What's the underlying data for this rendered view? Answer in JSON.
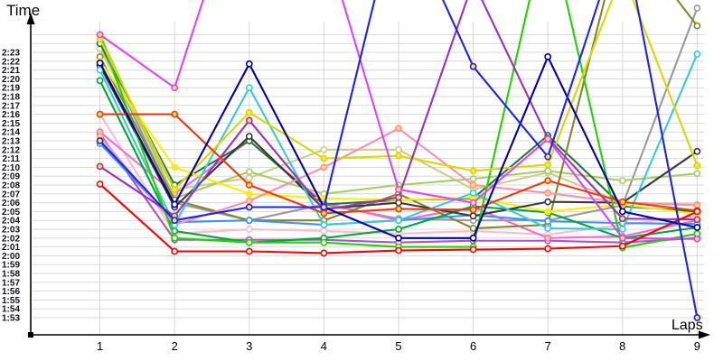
{
  "chart_data": {
    "type": "line",
    "title": "",
    "ylabel": "Time",
    "xlabel": "Laps",
    "grid": true,
    "legend": "none",
    "x_ticks": [
      "1",
      "2",
      "3",
      "4",
      "5",
      "6",
      "7",
      "8",
      "9"
    ],
    "y_ticks": [
      "2:23",
      "2:22",
      "2:21",
      "2:20",
      "2:19",
      "2:18",
      "2:17",
      "2:16",
      "2:15",
      "2:14",
      "2:13",
      "2:12",
      "2:11",
      "2:10",
      "2:09",
      "2:08",
      "2:07",
      "2:06",
      "2:05",
      "2:04",
      "2:03",
      "2:02",
      "2:01",
      "2:00",
      "1:59",
      "1:58",
      "1:57",
      "1:56",
      "1:55",
      "1:54",
      "1:53"
    ],
    "y_axis": {
      "top_label": "2:23",
      "bottom_label": "1:53",
      "tick_interval_seconds": 1
    },
    "x_axis": {
      "first_lap": 1,
      "last_lap": 9
    },
    "series": [
      {
        "id": "series-gray",
        "color": "#9a9a9a",
        "marker_fill": "#ffffff",
        "lap_times_seconds": [
          144.0,
          126.0,
          124.0,
          125.8,
          124.2,
          124.0,
          124.0,
          125.7,
          148.0
        ]
      },
      {
        "id": "series-light-pink",
        "color": "#ffbccb",
        "marker_fill": "#ffffff",
        "lap_times_seconds": [
          136.0,
          122.5,
          123.0,
          122.8,
          122.5,
          122.8,
          122.4,
          123.5,
          124.5
        ]
      },
      {
        "id": "series-plum",
        "color": "#aa55cc",
        "marker_fill": "#ffffff",
        "lap_times_seconds": [
          133.8,
          121.8,
          121.8,
          121.8,
          121.5,
          121.7,
          121.7,
          121.5,
          122.0
        ]
      },
      {
        "id": "series-magenta",
        "color": "#ff66dd",
        "marker_fill": "#ffe24a",
        "lap_times_seconds": [
          134.0,
          127.0,
          133.0,
          126.0,
          124.0,
          125.5,
          122.0,
          122.2,
          124.0
        ]
      },
      {
        "id": "series-khaki",
        "color": "#cdcd8a",
        "marker_fill": "#ffffff",
        "lap_times_seconds": [
          143.4,
          127.5,
          128.8,
          132.0,
          132.0,
          127.5,
          129.4,
          126.0,
          125.8
        ]
      },
      {
        "id": "series-pale-green",
        "color": "#a9cc66",
        "marker_fill": "#ffffff",
        "lap_times_seconds": [
          145.0,
          126.5,
          129.5,
          127.0,
          128.0,
          128.7,
          129.6,
          128.5,
          129.3
        ]
      },
      {
        "id": "series-dark-green",
        "color": "#1f7a33",
        "marker_fill": "#ffffff",
        "lap_times_seconds": [
          144.0,
          128.0,
          133.0,
          125.8,
          126.3,
          126.5,
          133.6,
          125.6,
          125.0
        ]
      },
      {
        "id": "series-olive",
        "color": "#86862f",
        "marker_fill": "#ffffff",
        "lap_times_seconds": [
          142.5,
          126.3,
          124.0,
          124.0,
          127.0,
          123.1,
          123.5,
          157.0,
          146.0
        ]
      },
      {
        "id": "series-sky-blue",
        "color": "#3b94f0",
        "marker_fill": "#ffffff",
        "lap_times_seconds": [
          132.7,
          123.8,
          124.0,
          123.5,
          124.0,
          124.6,
          123.9,
          123.7,
          123.6
        ]
      },
      {
        "id": "series-green",
        "color": "#00a838",
        "marker_fill": "#ffffff",
        "lap_times_seconds": [
          139.8,
          122.8,
          121.5,
          122.0,
          123.0,
          125.6,
          124.9,
          122.0,
          123.2
        ]
      },
      {
        "id": "series-bright-yellow",
        "color": "#ffee00",
        "marker_fill": "#ffe24a",
        "lap_times_seconds": [
          142.0,
          130.0,
          127.0,
          126.5,
          126.3,
          126.6,
          125.0,
          125.8,
          124.7
        ]
      },
      {
        "id": "series-black",
        "color": "#3a3a3a",
        "marker_fill": "#ffffff",
        "lap_times_seconds": [
          141.5,
          125.5,
          133.5,
          125.3,
          126.0,
          124.5,
          126.1,
          126.0,
          131.8
        ]
      },
      {
        "id": "series-pink",
        "color": "#ff8fae",
        "marker_fill": "#ffe24a",
        "lap_times_seconds": [
          133.5,
          123.5,
          126.2,
          130.0,
          134.4,
          128.0,
          127.1,
          126.0,
          125.7
        ]
      },
      {
        "id": "series-cyan",
        "color": "#35cdd3",
        "marker_fill": "#ffffff",
        "lap_times_seconds": [
          141.0,
          123.5,
          139.0,
          123.5,
          124.0,
          127.1,
          123.1,
          123.0,
          142.8
        ]
      },
      {
        "id": "series-bright-green",
        "color": "#1fd400",
        "marker_fill": "#ffffff",
        "lap_times_seconds": [
          145.0,
          122.0,
          121.5,
          121.5,
          121.0,
          121.0,
          158.0,
          120.9,
          122.5
        ]
      },
      {
        "id": "series-yellow",
        "color": "#d9d900",
        "marker_fill": "#ffe24a",
        "lap_times_seconds": [
          144.5,
          127.5,
          136.2,
          131.0,
          131.3,
          129.6,
          130.3,
          152.0,
          130.2
        ]
      },
      {
        "id": "series-purple",
        "color": "#9933bb",
        "marker_fill": "#ffe24a",
        "lap_times_seconds": [
          130.1,
          124.5,
          135.3,
          125.2,
          126.6,
          151.0,
          133.3,
          124.2,
          124.1
        ]
      },
      {
        "id": "series-violet",
        "color": "#dd44ff",
        "marker_fill": "#ffe24a",
        "lap_times_seconds": [
          145.0,
          139.0,
          165.0,
          156.0,
          127.5,
          126.0,
          133.2,
          122.0,
          121.9
        ]
      },
      {
        "id": "series-orange-red",
        "color": "#ee3b10",
        "marker_fill": "#ffe24a",
        "lap_times_seconds": [
          136.0,
          136.0,
          128.0,
          124.8,
          125.3,
          125.2,
          128.5,
          126.1,
          125.1
        ]
      },
      {
        "id": "series-red",
        "color": "#ff0000",
        "marker_fill": "#ffffff",
        "lap_times_seconds": [
          128.1,
          120.5,
          120.5,
          120.3,
          120.6,
          120.7,
          120.8,
          121.1,
          125.0
        ]
      },
      {
        "id": "series-navy",
        "color": "#0000a8",
        "marker_fill": "#ffffff",
        "lap_times_seconds": [
          141.8,
          125.8,
          141.7,
          125.5,
          122.0,
          122.0,
          142.5,
          125.0,
          123.2
        ]
      },
      {
        "id": "series-blue",
        "color": "#2222ee",
        "marker_fill": "#ffe24a",
        "lap_times_seconds": [
          133.0,
          124.0,
          125.5,
          125.5,
          160.0,
          141.4,
          131.2,
          157.0,
          113.0
        ]
      }
    ]
  }
}
